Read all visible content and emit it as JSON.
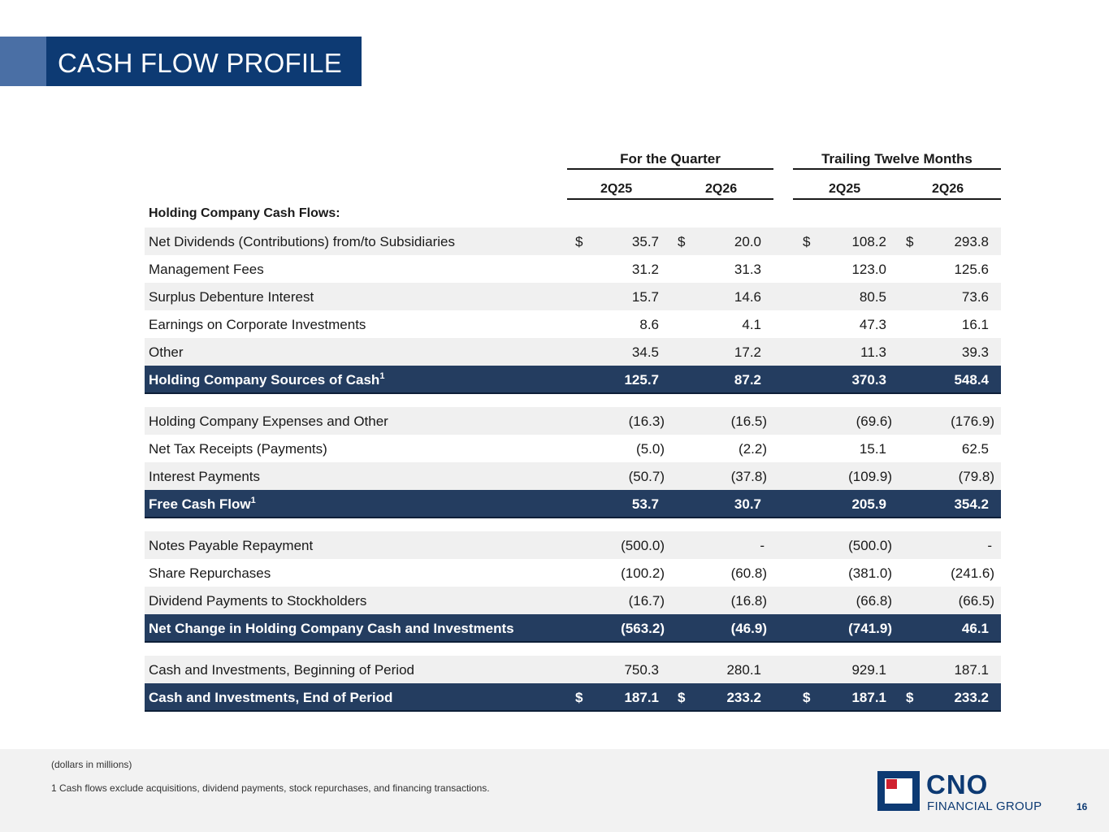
{
  "title": "CASH FLOW PROFILE",
  "headers": {
    "group1": "For the Quarter",
    "group2": "Trailing Twelve Months",
    "cols": [
      "2Q25",
      "2Q26",
      "2Q25",
      "2Q26"
    ]
  },
  "section_label": "Holding Company Cash Flows:",
  "rows": [
    {
      "label": "Net Dividends (Contributions) from/to Subsidiaries",
      "sup": "",
      "values": [
        "35.7",
        "20.0",
        "108.2",
        "293.8"
      ],
      "dollar": "$",
      "style": "shade"
    },
    {
      "label": "Management Fees",
      "sup": "",
      "values": [
        "31.2",
        "31.3",
        "123.0",
        "125.6"
      ],
      "dollar": "",
      "style": "plain"
    },
    {
      "label": "Surplus Debenture Interest",
      "sup": "",
      "values": [
        "15.7",
        "14.6",
        "80.5",
        "73.6"
      ],
      "dollar": "",
      "style": "shade"
    },
    {
      "label": "Earnings on Corporate Investments",
      "sup": "",
      "values": [
        "8.6",
        "4.1",
        "47.3",
        "16.1"
      ],
      "dollar": "",
      "style": "plain"
    },
    {
      "label": "Other",
      "sup": "",
      "values": [
        "34.5",
        "17.2",
        "11.3",
        "39.3"
      ],
      "dollar": "",
      "style": "shade"
    },
    {
      "label": "Holding Company Sources of Cash",
      "sup": "1",
      "values": [
        "125.7",
        "87.2",
        "370.3",
        "548.4"
      ],
      "dollar": "",
      "style": "total"
    },
    {
      "label": "Holding Company Expenses and Other",
      "sup": "",
      "values": [
        "(16.3)",
        "(16.5)",
        "(69.6)",
        "(176.9)"
      ],
      "dollar": "",
      "style": "shade"
    },
    {
      "label": "Net Tax Receipts (Payments)",
      "sup": "",
      "values": [
        "(5.0)",
        "(2.2)",
        "15.1",
        "62.5"
      ],
      "dollar": "",
      "style": "plain"
    },
    {
      "label": "Interest Payments",
      "sup": "",
      "values": [
        "(50.7)",
        "(37.8)",
        "(109.9)",
        "(79.8)"
      ],
      "dollar": "",
      "style": "shade"
    },
    {
      "label": "Free Cash Flow",
      "sup": "1",
      "values": [
        "53.7",
        "30.7",
        "205.9",
        "354.2"
      ],
      "dollar": "",
      "style": "total"
    },
    {
      "label": "Notes Payable Repayment",
      "sup": "",
      "values": [
        "(500.0)",
        "-",
        "(500.0)",
        "-"
      ],
      "dollar": "",
      "style": "shade"
    },
    {
      "label": "Share Repurchases",
      "sup": "",
      "values": [
        "(100.2)",
        "(60.8)",
        "(381.0)",
        "(241.6)"
      ],
      "dollar": "",
      "style": "plain"
    },
    {
      "label": "Dividend Payments to Stockholders",
      "sup": "",
      "values": [
        "(16.7)",
        "(16.8)",
        "(66.8)",
        "(66.5)"
      ],
      "dollar": "",
      "style": "shade"
    },
    {
      "label": "Net Change in Holding Company Cash and Investments",
      "sup": "",
      "values": [
        "(563.2)",
        "(46.9)",
        "(741.9)",
        "46.1"
      ],
      "dollar": "",
      "style": "total"
    },
    {
      "label": "Cash and Investments, Beginning of Period",
      "sup": "",
      "values": [
        "750.3",
        "280.1",
        "929.1",
        "187.1"
      ],
      "dollar": "",
      "style": "shade"
    },
    {
      "label": "Cash and Investments, End of Period",
      "sup": "",
      "values": [
        "187.1",
        "233.2",
        "187.1",
        "233.2"
      ],
      "dollar": "$",
      "style": "total"
    }
  ],
  "footer": {
    "note_units": "(dollars in millions)",
    "footnote": "1  Cash flows exclude acquisitions, dividend payments, stock repurchases, and financing transactions.",
    "logo_name": "CNO",
    "logo_sub": "FINANCIAL GROUP",
    "page_number": "16"
  },
  "colors": {
    "title_bg": "#0d3a73",
    "accent": "#4a6fa5",
    "total_row_bg": "#243d60",
    "shade_row_bg": "#f0f0f0",
    "logo_red": "#d0202e"
  }
}
